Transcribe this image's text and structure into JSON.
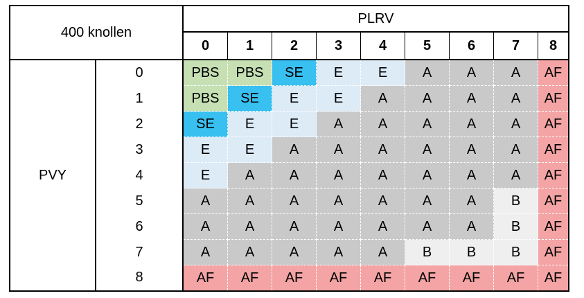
{
  "corner_label": "400 knollen",
  "column_group_label": "PLRV",
  "row_group_label": "PVY",
  "columns": [
    "0",
    "1",
    "2",
    "3",
    "4",
    "5",
    "6",
    "7",
    "8"
  ],
  "rows": [
    {
      "label": "0",
      "cells": [
        "PBS",
        "PBS",
        "SE",
        "E",
        "E",
        "A",
        "A",
        "A",
        "AF"
      ]
    },
    {
      "label": "1",
      "cells": [
        "PBS",
        "SE",
        "E",
        "E",
        "A",
        "A",
        "A",
        "A",
        "AF"
      ]
    },
    {
      "label": "2",
      "cells": [
        "SE",
        "E",
        "E",
        "A",
        "A",
        "A",
        "A",
        "A",
        "AF"
      ]
    },
    {
      "label": "3",
      "cells": [
        "E",
        "E",
        "A",
        "A",
        "A",
        "A",
        "A",
        "A",
        "AF"
      ]
    },
    {
      "label": "4",
      "cells": [
        "E",
        "A",
        "A",
        "A",
        "A",
        "A",
        "A",
        "A",
        "AF"
      ]
    },
    {
      "label": "5",
      "cells": [
        "A",
        "A",
        "A",
        "A",
        "A",
        "A",
        "A",
        "B",
        "AF"
      ]
    },
    {
      "label": "6",
      "cells": [
        "A",
        "A",
        "A",
        "A",
        "A",
        "A",
        "A",
        "B",
        "AF"
      ]
    },
    {
      "label": "7",
      "cells": [
        "A",
        "A",
        "A",
        "A",
        "A",
        "B",
        "B",
        "B",
        "AF"
      ]
    },
    {
      "label": "8",
      "cells": [
        "AF",
        "AF",
        "AF",
        "AF",
        "AF",
        "AF",
        "AF",
        "AF",
        "AF"
      ]
    }
  ],
  "category_colors": {
    "PBS": "#c6e0b4",
    "SE": "#38c0f0",
    "E": "#ddebf7",
    "A": "#c9c9c9",
    "B": "#efefef",
    "AF": "#f4a4a4"
  }
}
